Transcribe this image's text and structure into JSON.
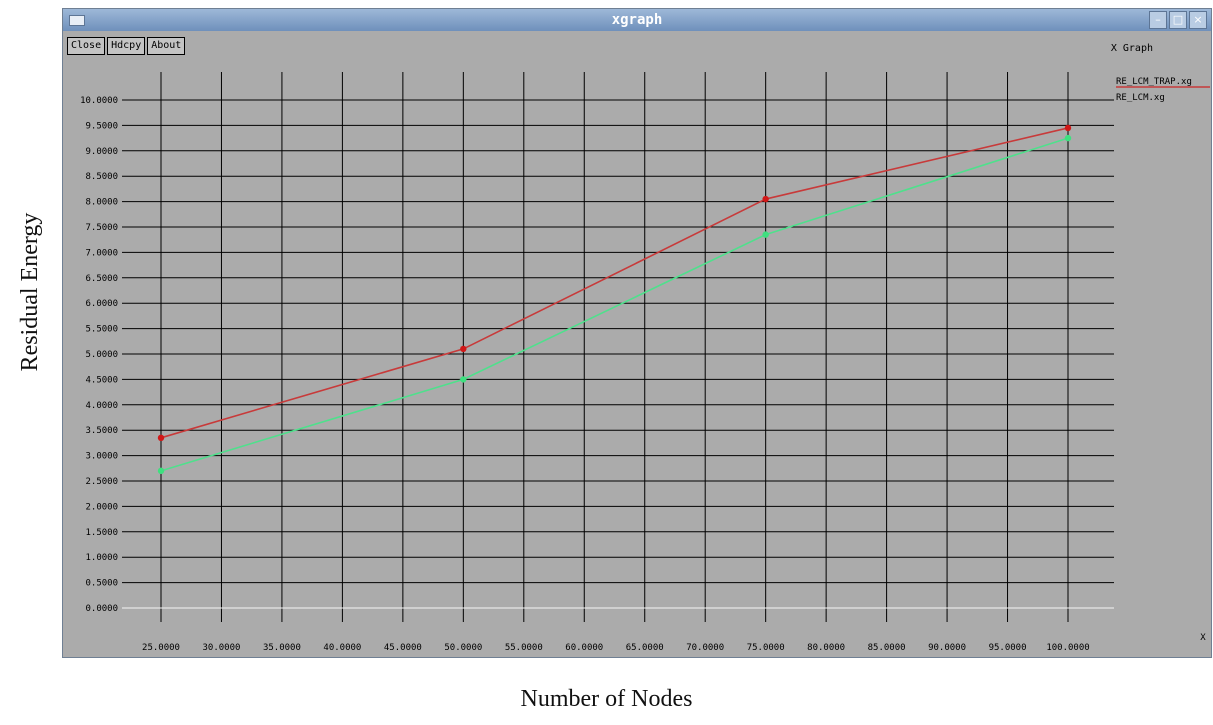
{
  "window": {
    "title": "xgraph",
    "buttons": [
      "Close",
      "Hdcpy",
      "About"
    ],
    "top_right_label": "X Graph",
    "x_unit_label": "X"
  },
  "figure": {
    "ylabel": "Residual Energy",
    "xlabel": "Number of Nodes"
  },
  "chart_data": {
    "type": "line",
    "title": "",
    "xlabel": "Number of Nodes",
    "ylabel": "Residual Energy",
    "x": [
      25,
      50,
      75,
      100
    ],
    "xlim": [
      25,
      100
    ],
    "ylim": [
      0,
      10
    ],
    "x_ticks": [
      "25.0000",
      "30.0000",
      "35.0000",
      "40.0000",
      "45.0000",
      "50.0000",
      "55.0000",
      "60.0000",
      "65.0000",
      "70.0000",
      "75.0000",
      "80.0000",
      "85.0000",
      "90.0000",
      "95.0000",
      "100.0000"
    ],
    "y_ticks": [
      "0.0000",
      "0.5000",
      "1.0000",
      "1.5000",
      "2.0000",
      "2.5000",
      "3.0000",
      "3.5000",
      "4.0000",
      "4.5000",
      "5.0000",
      "5.5000",
      "6.0000",
      "6.5000",
      "7.0000",
      "7.5000",
      "8.0000",
      "8.5000",
      "9.0000",
      "9.5000",
      "10.0000"
    ],
    "grid": true,
    "legend_position": "top-right",
    "series": [
      {
        "name": "RE_LCM_TRAP.xg",
        "values": [
          3.35,
          5.1,
          8.05,
          9.45
        ],
        "color": "#c83a3a"
      },
      {
        "name": "RE_LCM.xg",
        "values": [
          2.7,
          4.5,
          7.35,
          9.25
        ],
        "color": "#4fe08c"
      }
    ]
  }
}
